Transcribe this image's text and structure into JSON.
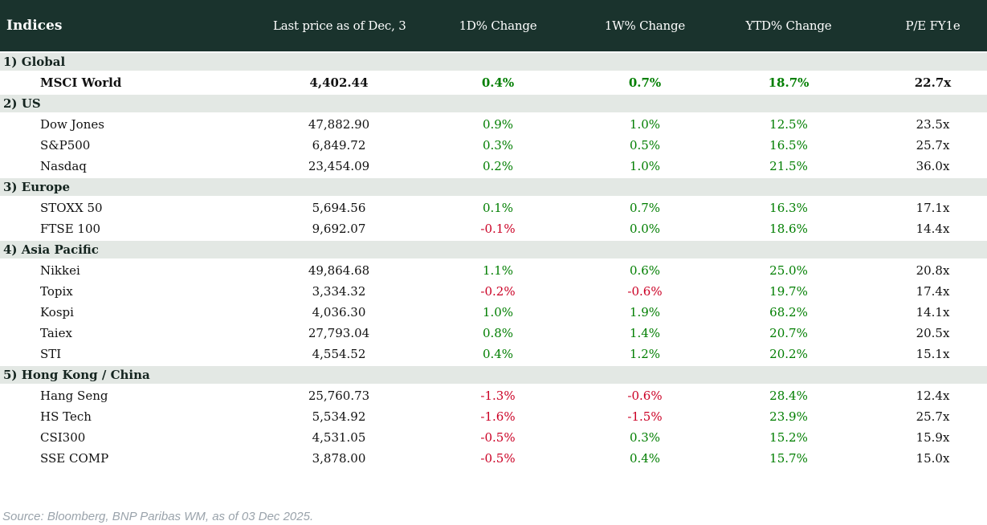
{
  "chart_data": {
    "type": "table",
    "title": "Indices",
    "columns": [
      "Last price as of Dec, 3",
      "1D% Change",
      "1W% Change",
      "YTD% Change",
      "P/E FY1e"
    ],
    "sections": [
      {
        "label": "1) Global",
        "rows": [
          {
            "name": "MSCI World",
            "highlight": true,
            "price": "4,402.44",
            "change_1d": "0.4%",
            "change_1w": "0.7%",
            "change_ytd": "18.7%",
            "pe_fy1e": "22.7x"
          }
        ]
      },
      {
        "label": "2) US",
        "rows": [
          {
            "name": "Dow Jones",
            "highlight": false,
            "price": "47,882.90",
            "change_1d": "0.9%",
            "change_1w": "1.0%",
            "change_ytd": "12.5%",
            "pe_fy1e": "23.5x"
          },
          {
            "name": "S&P500",
            "highlight": false,
            "price": "6,849.72",
            "change_1d": "0.3%",
            "change_1w": "0.5%",
            "change_ytd": "16.5%",
            "pe_fy1e": "25.7x"
          },
          {
            "name": "Nasdaq",
            "highlight": false,
            "price": "23,454.09",
            "change_1d": "0.2%",
            "change_1w": "1.0%",
            "change_ytd": "21.5%",
            "pe_fy1e": "36.0x"
          }
        ]
      },
      {
        "label": "3) Europe",
        "rows": [
          {
            "name": "STOXX 50",
            "highlight": false,
            "price": "5,694.56",
            "change_1d": "0.1%",
            "change_1w": "0.7%",
            "change_ytd": "16.3%",
            "pe_fy1e": "17.1x"
          },
          {
            "name": "FTSE 100",
            "highlight": false,
            "price": "9,692.07",
            "change_1d": "-0.1%",
            "change_1w": "0.0%",
            "change_ytd": "18.6%",
            "pe_fy1e": "14.4x"
          }
        ]
      },
      {
        "label": "4) Asia Pacific",
        "rows": [
          {
            "name": "Nikkei",
            "highlight": false,
            "price": "49,864.68",
            "change_1d": "1.1%",
            "change_1w": "0.6%",
            "change_ytd": "25.0%",
            "pe_fy1e": "20.8x"
          },
          {
            "name": "Topix",
            "highlight": false,
            "price": "3,334.32",
            "change_1d": "-0.2%",
            "change_1w": "-0.6%",
            "change_ytd": "19.7%",
            "pe_fy1e": "17.4x"
          },
          {
            "name": "Kospi",
            "highlight": false,
            "price": "4,036.30",
            "change_1d": "1.0%",
            "change_1w": "1.9%",
            "change_ytd": "68.2%",
            "pe_fy1e": "14.1x"
          },
          {
            "name": "Taiex",
            "highlight": false,
            "price": "27,793.04",
            "change_1d": "0.8%",
            "change_1w": "1.4%",
            "change_ytd": "20.7%",
            "pe_fy1e": "20.5x"
          },
          {
            "name": "STI",
            "highlight": false,
            "price": "4,554.52",
            "change_1d": "0.4%",
            "change_1w": "1.2%",
            "change_ytd": "20.2%",
            "pe_fy1e": "15.1x"
          }
        ]
      },
      {
        "label": "5) Hong Kong / China",
        "rows": [
          {
            "name": "Hang Seng",
            "highlight": false,
            "price": "25,760.73",
            "change_1d": "-1.3%",
            "change_1w": "-0.6%",
            "change_ytd": "28.4%",
            "pe_fy1e": "12.4x"
          },
          {
            "name": "HS Tech",
            "highlight": false,
            "price": "5,534.92",
            "change_1d": "-1.6%",
            "change_1w": "-1.5%",
            "change_ytd": "23.9%",
            "pe_fy1e": "25.7x"
          },
          {
            "name": "CSI300",
            "highlight": false,
            "price": "4,531.05",
            "change_1d": "-0.5%",
            "change_1w": "0.3%",
            "change_ytd": "15.2%",
            "pe_fy1e": "15.9x"
          },
          {
            "name": "SSE COMP",
            "highlight": false,
            "price": "3,878.00",
            "change_1d": "-0.5%",
            "change_1w": "0.4%",
            "change_ytd": "15.7%",
            "pe_fy1e": "15.0x"
          }
        ]
      }
    ]
  },
  "footer": {
    "source_note": "Source: Bloomberg, BNP Paribas WM, as of 03 Dec 2025."
  },
  "colors": {
    "header_bg": "#1a332d",
    "header_text": "#ffffff",
    "section_bg": "#e3e8e4",
    "section_text": "#14241f",
    "positive": "#007e00",
    "negative": "#cb0025",
    "footer_text": "#9aa3ab"
  }
}
